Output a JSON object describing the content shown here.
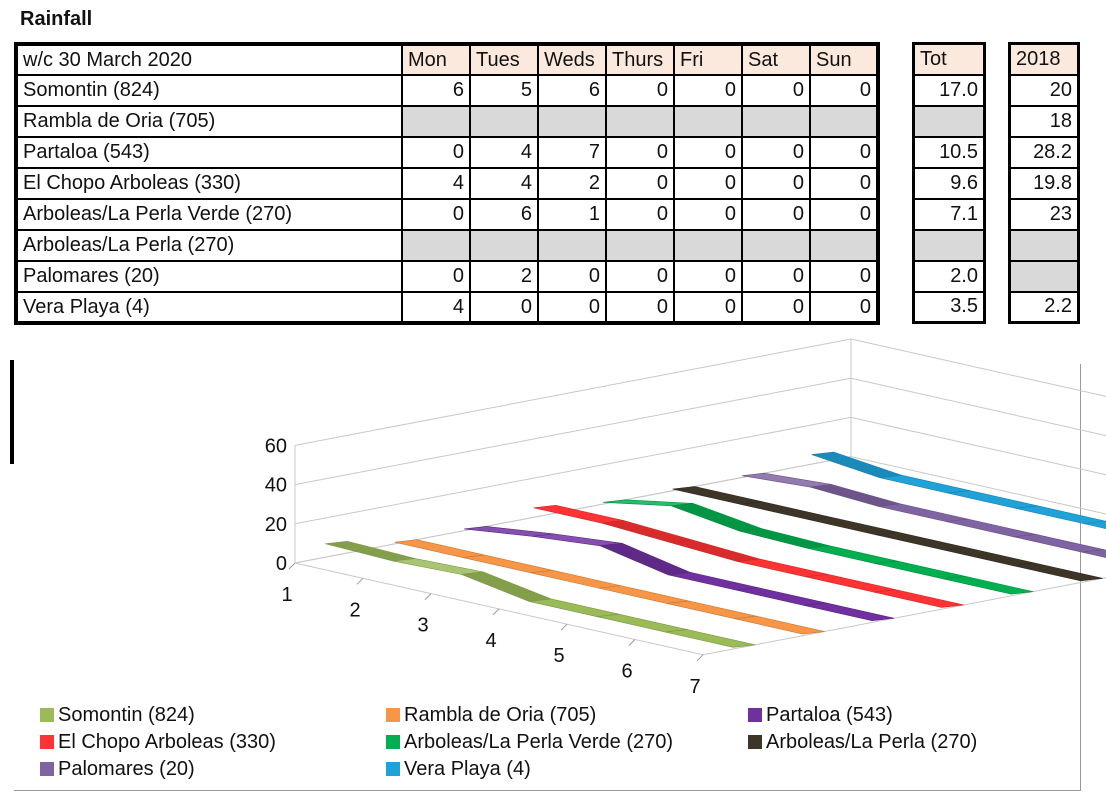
{
  "title": "Rainfall",
  "table": {
    "week_label": "w/c  30 March 2020",
    "days": [
      "Mon",
      "Tues",
      "Weds",
      "Thurs",
      "Fri",
      "Sat",
      "Sun"
    ],
    "tot_header": "Tot",
    "year_header": "2018",
    "rows": [
      {
        "name": "Somontin (824)",
        "values": [
          "6",
          "5",
          "6",
          "0",
          "0",
          "0",
          "0"
        ],
        "tot": "17.0",
        "year": "20"
      },
      {
        "name": "Rambla de Oria (705)",
        "values": [
          "",
          "",
          "",
          "",
          "",
          "",
          ""
        ],
        "tot": "",
        "year": "18"
      },
      {
        "name": "Partaloa (543)",
        "values": [
          "0",
          "4",
          "7",
          "0",
          "0",
          "0",
          "0"
        ],
        "tot": "10.5",
        "year": "28.2"
      },
      {
        "name": "El Chopo Arboleas (330)",
        "values": [
          "4",
          "4",
          "2",
          "0",
          "0",
          "0",
          "0"
        ],
        "tot": "9.6",
        "year": "19.8"
      },
      {
        "name": "Arboleas/La Perla Verde (270)",
        "values": [
          "0",
          "6",
          "1",
          "0",
          "0",
          "0",
          "0"
        ],
        "tot": "7.1",
        "year": "23"
      },
      {
        "name": "Arboleas/La Perla (270)",
        "values": [
          "",
          "",
          "",
          "",
          "",
          "",
          ""
        ],
        "tot": "",
        "year": ""
      },
      {
        "name": "Palomares (20)",
        "values": [
          "0",
          "2",
          "0",
          "0",
          "0",
          "0",
          "0"
        ],
        "tot": "2.0",
        "year": ""
      },
      {
        "name": "Vera Playa (4)",
        "values": [
          "4",
          "0",
          "0",
          "0",
          "0",
          "0",
          "0"
        ],
        "tot": "3.5",
        "year": "2.2"
      }
    ]
  },
  "chart_data": {
    "type": "line",
    "style": "3d-ribbon",
    "x": [
      1,
      2,
      3,
      4,
      5,
      6,
      7
    ],
    "ylim": [
      0,
      60
    ],
    "yticks": [
      0,
      20,
      40,
      60
    ],
    "grid": true,
    "legend": "bottom",
    "series": [
      {
        "name": "Somontin (824)",
        "color": "#9bbb59",
        "values": [
          6,
          5,
          6,
          0,
          0,
          0,
          0
        ]
      },
      {
        "name": "Rambla de Oria (705)",
        "color": "#f79646",
        "values": [
          0,
          0,
          0,
          0,
          0,
          0,
          0
        ]
      },
      {
        "name": "Partaloa (543)",
        "color": "#7030a0",
        "values": [
          0,
          4,
          7,
          0,
          0,
          0,
          0
        ]
      },
      {
        "name": "El Chopo Arboleas (330)",
        "color": "#ff3333",
        "values": [
          4,
          4,
          2,
          0,
          0,
          0,
          0
        ]
      },
      {
        "name": "Arboleas/La Perla Verde (270)",
        "color": "#00b050",
        "values": [
          0,
          6,
          1,
          0,
          0,
          0,
          0
        ]
      },
      {
        "name": "Arboleas/La Perla (270)",
        "color": "#3d3528",
        "values": [
          0,
          0,
          0,
          0,
          0,
          0,
          0
        ]
      },
      {
        "name": "Palomares (20)",
        "color": "#8064a2",
        "values": [
          0,
          2,
          0,
          0,
          0,
          0,
          0
        ]
      },
      {
        "name": "Vera Playa (4)",
        "color": "#1fa2d8",
        "values": [
          4,
          0,
          0,
          0,
          0,
          0,
          0
        ]
      }
    ]
  }
}
